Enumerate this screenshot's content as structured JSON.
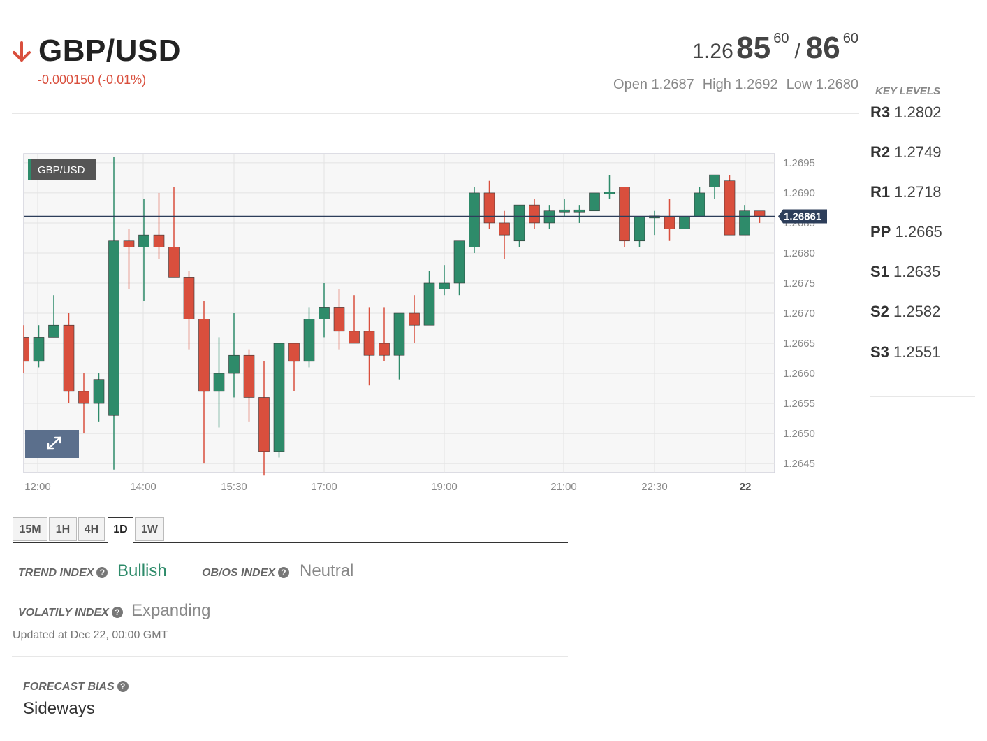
{
  "header": {
    "pair": "GBP/USD",
    "change": "-0.000150 (-0.01%)",
    "quote": {
      "bid_prefix": "1.26",
      "bid_big": "85",
      "bid_pip": "60",
      "separator": "/",
      "ask_big": "86",
      "ask_pip": "60"
    },
    "open": "Open 1.2687",
    "high": "High 1.2692",
    "low": "Low 1.2680",
    "direction_icon": "arrow-down-icon"
  },
  "key_levels": {
    "title": "KEY LEVELS",
    "items": [
      {
        "label": "R3",
        "value": "1.2802"
      },
      {
        "label": "R2",
        "value": "1.2749"
      },
      {
        "label": "R1",
        "value": "1.2718"
      },
      {
        "label": "PP",
        "value": "1.2665"
      },
      {
        "label": "S1",
        "value": "1.2635"
      },
      {
        "label": "S2",
        "value": "1.2582"
      },
      {
        "label": "S3",
        "value": "1.2551"
      }
    ]
  },
  "chart_data": {
    "type": "candlestick",
    "symbol_label": "GBP/USD",
    "current_price": 1.26861,
    "current_price_label": "1.26861",
    "expand_icon": "expand-icon",
    "ylim": [
      1.26435,
      1.26965
    ],
    "y_ticks": [
      "1.2695",
      "1.2690",
      "1.2685",
      "1.2680",
      "1.2675",
      "1.2670",
      "1.2665",
      "1.2660",
      "1.2655",
      "1.2650",
      "1.2645"
    ],
    "x_ticks": [
      "12:00",
      "14:00",
      "15:30",
      "17:00",
      "19:00",
      "21:00",
      "22:30",
      "22"
    ],
    "up_color": "#2e8b6a",
    "down_color": "#d94f3d",
    "candles": [
      {
        "o": 1.2666,
        "h": 1.2668,
        "l": 1.266,
        "c": 1.2662
      },
      {
        "o": 1.2662,
        "h": 1.2668,
        "l": 1.2661,
        "c": 1.2666
      },
      {
        "o": 1.2666,
        "h": 1.2673,
        "l": 1.2666,
        "c": 1.2668
      },
      {
        "o": 1.2668,
        "h": 1.267,
        "l": 1.2655,
        "c": 1.2657
      },
      {
        "o": 1.2657,
        "h": 1.266,
        "l": 1.265,
        "c": 1.2655
      },
      {
        "o": 1.2655,
        "h": 1.266,
        "l": 1.2652,
        "c": 1.2659
      },
      {
        "o": 1.2653,
        "h": 1.2696,
        "l": 1.2644,
        "c": 1.2682
      },
      {
        "o": 1.2682,
        "h": 1.2684,
        "l": 1.2674,
        "c": 1.2681
      },
      {
        "o": 1.2681,
        "h": 1.2689,
        "l": 1.2672,
        "c": 1.2683
      },
      {
        "o": 1.2683,
        "h": 1.269,
        "l": 1.2679,
        "c": 1.2681
      },
      {
        "o": 1.2681,
        "h": 1.2691,
        "l": 1.2676,
        "c": 1.2676
      },
      {
        "o": 1.2676,
        "h": 1.2677,
        "l": 1.2664,
        "c": 1.2669
      },
      {
        "o": 1.2669,
        "h": 1.2672,
        "l": 1.2645,
        "c": 1.2657
      },
      {
        "o": 1.2657,
        "h": 1.2666,
        "l": 1.2651,
        "c": 1.266
      },
      {
        "o": 1.266,
        "h": 1.267,
        "l": 1.2656,
        "c": 1.2663
      },
      {
        "o": 1.2663,
        "h": 1.2664,
        "l": 1.2652,
        "c": 1.2656
      },
      {
        "o": 1.2656,
        "h": 1.2662,
        "l": 1.2643,
        "c": 1.2647
      },
      {
        "o": 1.2647,
        "h": 1.2665,
        "l": 1.2646,
        "c": 1.2665
      },
      {
        "o": 1.2665,
        "h": 1.2665,
        "l": 1.2657,
        "c": 1.2662
      },
      {
        "o": 1.2662,
        "h": 1.2671,
        "l": 1.2661,
        "c": 1.2669
      },
      {
        "o": 1.2669,
        "h": 1.2675,
        "l": 1.2666,
        "c": 1.2671
      },
      {
        "o": 1.2671,
        "h": 1.2674,
        "l": 1.2664,
        "c": 1.2667
      },
      {
        "o": 1.2667,
        "h": 1.2673,
        "l": 1.2665,
        "c": 1.2665
      },
      {
        "o": 1.2667,
        "h": 1.2671,
        "l": 1.2658,
        "c": 1.2663
      },
      {
        "o": 1.2665,
        "h": 1.2671,
        "l": 1.2662,
        "c": 1.2663
      },
      {
        "o": 1.2663,
        "h": 1.267,
        "l": 1.2659,
        "c": 1.267
      },
      {
        "o": 1.267,
        "h": 1.2673,
        "l": 1.2665,
        "c": 1.2668
      },
      {
        "o": 1.2668,
        "h": 1.2677,
        "l": 1.2668,
        "c": 1.2675
      },
      {
        "o": 1.2674,
        "h": 1.2678,
        "l": 1.2673,
        "c": 1.2675
      },
      {
        "o": 1.2675,
        "h": 1.2682,
        "l": 1.2673,
        "c": 1.2682
      },
      {
        "o": 1.2681,
        "h": 1.2691,
        "l": 1.268,
        "c": 1.269
      },
      {
        "o": 1.269,
        "h": 1.2692,
        "l": 1.2684,
        "c": 1.2685
      },
      {
        "o": 1.2685,
        "h": 1.2687,
        "l": 1.2679,
        "c": 1.2683
      },
      {
        "o": 1.2682,
        "h": 1.2688,
        "l": 1.2681,
        "c": 1.2688
      },
      {
        "o": 1.2688,
        "h": 1.2689,
        "l": 1.2684,
        "c": 1.2685
      },
      {
        "o": 1.2685,
        "h": 1.2688,
        "l": 1.2684,
        "c": 1.2687
      },
      {
        "o": 1.2687,
        "h": 1.2689,
        "l": 1.2686,
        "c": 1.2687
      },
      {
        "o": 1.2687,
        "h": 1.2688,
        "l": 1.2685,
        "c": 1.2687
      },
      {
        "o": 1.2687,
        "h": 1.269,
        "l": 1.2687,
        "c": 1.269
      },
      {
        "o": 1.269,
        "h": 1.2693,
        "l": 1.2689,
        "c": 1.269
      },
      {
        "o": 1.2691,
        "h": 1.2691,
        "l": 1.2681,
        "c": 1.2682
      },
      {
        "o": 1.2682,
        "h": 1.2686,
        "l": 1.2681,
        "c": 1.2686
      },
      {
        "o": 1.2686,
        "h": 1.2687,
        "l": 1.2683,
        "c": 1.2686
      },
      {
        "o": 1.2686,
        "h": 1.2689,
        "l": 1.2682,
        "c": 1.2684
      },
      {
        "o": 1.2684,
        "h": 1.2686,
        "l": 1.2684,
        "c": 1.2686
      },
      {
        "o": 1.2686,
        "h": 1.2691,
        "l": 1.2686,
        "c": 1.269
      },
      {
        "o": 1.2691,
        "h": 1.2693,
        "l": 1.2689,
        "c": 1.2693
      },
      {
        "o": 1.2692,
        "h": 1.2693,
        "l": 1.2683,
        "c": 1.2683
      },
      {
        "o": 1.2683,
        "h": 1.2688,
        "l": 1.2683,
        "c": 1.2687
      },
      {
        "o": 1.2687,
        "h": 1.2687,
        "l": 1.2685,
        "c": 1.2686
      }
    ]
  },
  "timeframes": [
    {
      "label": "15M",
      "active": false
    },
    {
      "label": "1H",
      "active": false
    },
    {
      "label": "4H",
      "active": false
    },
    {
      "label": "1D",
      "active": true
    },
    {
      "label": "1W",
      "active": false
    }
  ],
  "indices": {
    "trend_label": "TREND INDEX",
    "trend_value": "Bullish",
    "obos_label": "OB/OS INDEX",
    "obos_value": "Neutral",
    "volatility_label": "VOLATILY INDEX",
    "volatility_value": "Expanding",
    "updated": "Updated at Dec 22, 00:00 GMT",
    "help_icon": "question-circle-icon"
  },
  "forecast": {
    "label": "FORECAST BIAS",
    "value": "Sideways"
  },
  "colors": {
    "up": "#2e8b6a",
    "down": "#d94f3d",
    "price_line": "#2d3e5a"
  }
}
